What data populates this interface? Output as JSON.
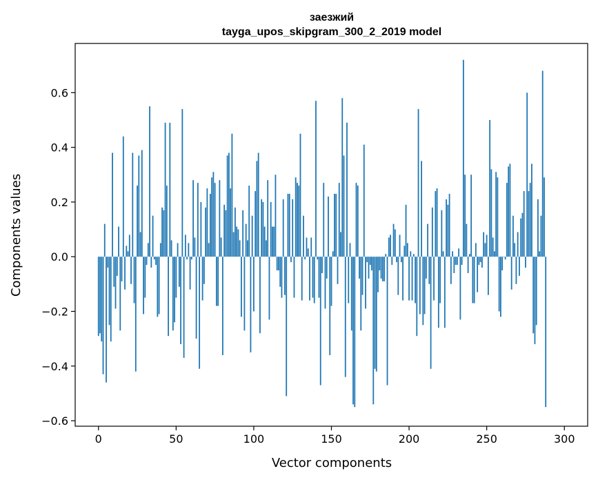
{
  "chart_data": {
    "type": "bar",
    "title_line1": "заезжий",
    "title_line2": "tayga_upos_skipgram_300_2_2019 model",
    "xlabel": "Vector components",
    "ylabel": "Components values",
    "xlim": [
      -15,
      315
    ],
    "ylim": [
      -0.62,
      0.78
    ],
    "xticks": [
      0,
      50,
      100,
      150,
      200,
      250,
      300
    ],
    "xtick_labels": [
      "0",
      "50",
      "100",
      "150",
      "200",
      "250",
      "300"
    ],
    "yticks": [
      -0.6,
      -0.4,
      -0.2,
      0.0,
      0.2,
      0.4,
      0.6
    ],
    "ytick_labels": [
      "−0.6",
      "−0.4",
      "−0.2",
      "0.0",
      "0.2",
      "0.4",
      "0.6"
    ],
    "bar_color": "#1f77b4",
    "values": [
      -0.29,
      -0.28,
      -0.31,
      -0.43,
      0.12,
      -0.46,
      -0.04,
      -0.25,
      -0.31,
      0.38,
      -0.11,
      -0.19,
      -0.07,
      0.11,
      -0.27,
      -0.09,
      0.44,
      -0.12,
      0.04,
      0.02,
      0.08,
      -0.1,
      0.38,
      -0.17,
      -0.42,
      0.26,
      0.37,
      0.09,
      0.39,
      -0.21,
      -0.15,
      -0.03,
      0.05,
      0.55,
      -0.04,
      0.15,
      -0.01,
      -0.03,
      -0.22,
      -0.21,
      0.05,
      0.18,
      0.17,
      0.49,
      0.26,
      -0.29,
      0.49,
      0.06,
      -0.27,
      -0.24,
      -0.15,
      0.05,
      -0.11,
      -0.32,
      0.54,
      -0.37,
      0.08,
      -0.01,
      0.05,
      -0.12,
      -0.01,
      0.28,
      0.07,
      -0.3,
      0.27,
      -0.41,
      0.2,
      -0.16,
      -0.1,
      0.18,
      0.25,
      0.05,
      0.23,
      0.29,
      0.31,
      0.27,
      -0.18,
      -0.18,
      0.28,
      0.07,
      -0.36,
      0.19,
      0.17,
      0.37,
      0.38,
      0.25,
      0.45,
      0.09,
      0.18,
      0.11,
      0.1,
      0.06,
      -0.22,
      0.17,
      -0.27,
      0.12,
      0.06,
      0.26,
      -0.35,
      0.15,
      -0.2,
      0.24,
      0.35,
      0.38,
      -0.28,
      0.21,
      0.2,
      0.11,
      0.06,
      0.28,
      -0.23,
      0.2,
      0.11,
      0.11,
      0.3,
      -0.05,
      -0.05,
      -0.11,
      -0.15,
      0.21,
      -0.14,
      -0.51,
      0.23,
      0.23,
      -0.02,
      0.21,
      -0.15,
      0.29,
      0.27,
      0.26,
      0.45,
      -0.16,
      0.15,
      -0.01,
      0.07,
      0.03,
      -0.16,
      0.07,
      -0.15,
      -0.17,
      0.57,
      -0.01,
      -0.15,
      -0.47,
      -0.06,
      0.27,
      -0.19,
      -0.08,
      0.22,
      -0.36,
      -0.18,
      0.02,
      0.23,
      0.23,
      -0.1,
      0.27,
      0.09,
      0.58,
      0.37,
      -0.44,
      0.49,
      -0.17,
      0.05,
      -0.27,
      -0.54,
      -0.55,
      0.27,
      0.26,
      -0.08,
      -0.27,
      -0.14,
      0.41,
      -0.19,
      -0.02,
      -0.08,
      -0.03,
      -0.05,
      -0.54,
      -0.41,
      -0.42,
      -0.13,
      -0.05,
      -0.08,
      -0.09,
      -0.09,
      0.01,
      -0.47,
      0.07,
      0.08,
      -0.03,
      0.12,
      0.1,
      -0.02,
      -0.14,
      0.08,
      -0.02,
      -0.16,
      0.04,
      0.19,
      0.05,
      -0.16,
      0.02,
      -0.16,
      0.01,
      -0.17,
      -0.29,
      0.54,
      -0.21,
      0.35,
      -0.25,
      -0.21,
      -0.08,
      0.12,
      -0.1,
      -0.41,
      0.18,
      -0.16,
      0.24,
      0.25,
      -0.26,
      -0.17,
      0.17,
      0.02,
      -0.26,
      0.21,
      0.19,
      0.23,
      -0.1,
      0.02,
      -0.06,
      -0.03,
      -0.03,
      0.03,
      -0.23,
      -0.03,
      0.72,
      0.3,
      0.12,
      -0.06,
      0.01,
      0.3,
      -0.17,
      -0.17,
      0.05,
      -0.13,
      -0.03,
      -0.02,
      -0.04,
      0.09,
      0.05,
      0.08,
      -0.14,
      0.5,
      0.32,
      0.07,
      0.02,
      0.31,
      0.29,
      -0.2,
      -0.22,
      -0.05,
      0.0,
      -0.01,
      0.27,
      0.33,
      0.34,
      -0.12,
      0.15,
      0.05,
      -0.1,
      0.09,
      -0.07,
      0.14,
      0.16,
      0.24,
      -0.04,
      0.6,
      0.24,
      0.27,
      0.34,
      -0.28,
      -0.32,
      -0.25,
      0.21,
      0.02,
      0.15,
      0.68,
      0.29,
      -0.55
    ]
  }
}
